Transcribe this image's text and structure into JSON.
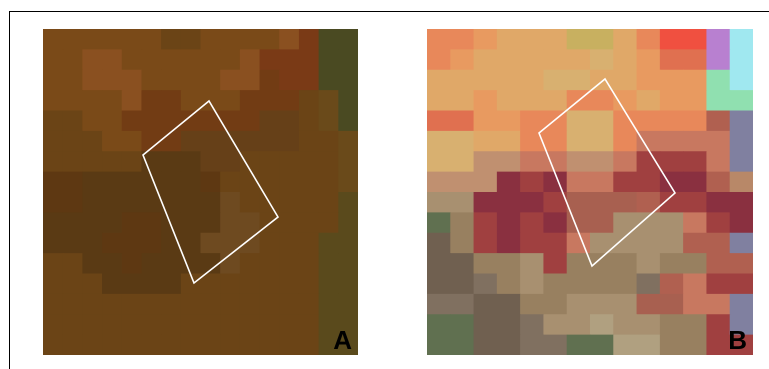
{
  "panels": [
    {
      "id": "a",
      "label": "A",
      "palette": [
        "#5a3a14",
        "#6b4416",
        "#7a4a18",
        "#8a5020",
        "#7a3a16",
        "#6a4a1a",
        "#5a4a1c",
        "#4a4a22",
        "#664018",
        "#723c14",
        "#5e3812",
        "#6e4a20"
      ],
      "grid": [
        [
          2,
          2,
          2,
          2,
          2,
          2,
          1,
          1,
          2,
          2,
          2,
          2,
          3,
          4,
          7,
          7
        ],
        [
          2,
          2,
          3,
          3,
          2,
          2,
          2,
          2,
          2,
          2,
          3,
          4,
          4,
          4,
          7,
          7
        ],
        [
          2,
          2,
          3,
          3,
          3,
          2,
          2,
          2,
          2,
          3,
          3,
          9,
          4,
          4,
          7,
          7
        ],
        [
          2,
          2,
          2,
          2,
          3,
          9,
          9,
          2,
          2,
          2,
          9,
          9,
          9,
          1,
          5,
          7
        ],
        [
          1,
          1,
          2,
          2,
          9,
          9,
          9,
          9,
          9,
          9,
          9,
          8,
          8,
          1,
          5,
          7
        ],
        [
          1,
          1,
          1,
          2,
          2,
          9,
          9,
          8,
          8,
          8,
          8,
          8,
          8,
          1,
          1,
          5
        ],
        [
          1,
          1,
          1,
          1,
          1,
          0,
          0,
          0,
          8,
          8,
          1,
          1,
          1,
          1,
          1,
          5
        ],
        [
          10,
          10,
          0,
          0,
          0,
          0,
          0,
          0,
          10,
          1,
          1,
          1,
          1,
          1,
          1,
          5
        ],
        [
          10,
          10,
          0,
          0,
          0,
          0,
          0,
          0,
          0,
          11,
          1,
          1,
          1,
          1,
          1,
          6
        ],
        [
          0,
          0,
          0,
          0,
          10,
          10,
          0,
          0,
          0,
          11,
          11,
          1,
          1,
          1,
          1,
          6
        ],
        [
          0,
          0,
          0,
          10,
          10,
          10,
          0,
          0,
          11,
          11,
          11,
          1,
          1,
          1,
          6,
          6
        ],
        [
          1,
          1,
          0,
          0,
          10,
          0,
          0,
          0,
          0,
          11,
          1,
          1,
          1,
          1,
          6,
          6
        ],
        [
          1,
          1,
          1,
          0,
          0,
          0,
          0,
          1,
          1,
          1,
          1,
          1,
          1,
          1,
          6,
          6
        ],
        [
          1,
          1,
          1,
          1,
          1,
          1,
          1,
          1,
          1,
          1,
          1,
          1,
          1,
          1,
          6,
          6
        ],
        [
          1,
          1,
          1,
          1,
          1,
          1,
          1,
          1,
          1,
          1,
          1,
          1,
          1,
          1,
          6,
          6
        ],
        [
          1,
          1,
          1,
          1,
          1,
          1,
          1,
          1,
          1,
          1,
          1,
          1,
          1,
          1,
          6,
          6
        ]
      ],
      "outline_color": "#ffffff"
    },
    {
      "id": "b",
      "label": "B",
      "palette": [
        "#e8885a",
        "#e89a60",
        "#e0a868",
        "#d8b070",
        "#c8b060",
        "#e07050",
        "#f05040",
        "#b880d0",
        "#a0e8f0",
        "#90e0b0",
        "#c87860",
        "#b06050",
        "#a04040",
        "#8a3040",
        "#b88868",
        "#a89070",
        "#988060",
        "#807060",
        "#706050",
        "#607050",
        "#8080a0",
        "#a86050",
        "#c09070",
        "#b0a080"
      ],
      "grid": [
        [
          0,
          0,
          1,
          2,
          2,
          2,
          4,
          4,
          2,
          0,
          6,
          6,
          7,
          8
        ],
        [
          0,
          1,
          2,
          2,
          2,
          2,
          2,
          3,
          2,
          1,
          5,
          5,
          7,
          8
        ],
        [
          2,
          2,
          2,
          2,
          2,
          3,
          3,
          2,
          2,
          1,
          1,
          1,
          9,
          8
        ],
        [
          2,
          2,
          1,
          2,
          2,
          2,
          0,
          0,
          1,
          2,
          1,
          1,
          9,
          9
        ],
        [
          5,
          5,
          1,
          1,
          0,
          0,
          3,
          3,
          0,
          0,
          0,
          0,
          11,
          20
        ],
        [
          3,
          3,
          2,
          2,
          0,
          0,
          3,
          3,
          0,
          10,
          10,
          10,
          10,
          20
        ],
        [
          3,
          3,
          22,
          22,
          10,
          10,
          22,
          22,
          10,
          12,
          12,
          12,
          10,
          20
        ],
        [
          22,
          22,
          22,
          13,
          12,
          13,
          10,
          10,
          12,
          12,
          13,
          13,
          11,
          14
        ],
        [
          15,
          15,
          13,
          13,
          13,
          12,
          21,
          21,
          21,
          11,
          12,
          12,
          13,
          13
        ],
        [
          19,
          16,
          12,
          13,
          12,
          13,
          21,
          21,
          15,
          15,
          15,
          10,
          12,
          13
        ],
        [
          18,
          16,
          12,
          13,
          12,
          12,
          10,
          15,
          15,
          15,
          15,
          11,
          11,
          20
        ],
        [
          18,
          18,
          16,
          16,
          15,
          12,
          16,
          16,
          16,
          15,
          16,
          16,
          11,
          11
        ],
        [
          18,
          18,
          17,
          16,
          15,
          16,
          16,
          16,
          16,
          17,
          11,
          10,
          12,
          12
        ],
        [
          17,
          17,
          18,
          18,
          16,
          16,
          15,
          15,
          15,
          21,
          21,
          10,
          10,
          20
        ],
        [
          19,
          19,
          18,
          18,
          17,
          15,
          15,
          23,
          15,
          15,
          16,
          16,
          12,
          20
        ],
        [
          19,
          19,
          18,
          18,
          17,
          17,
          19,
          19,
          23,
          23,
          16,
          16,
          12,
          12
        ]
      ],
      "outline_color": "#ffffff"
    }
  ]
}
